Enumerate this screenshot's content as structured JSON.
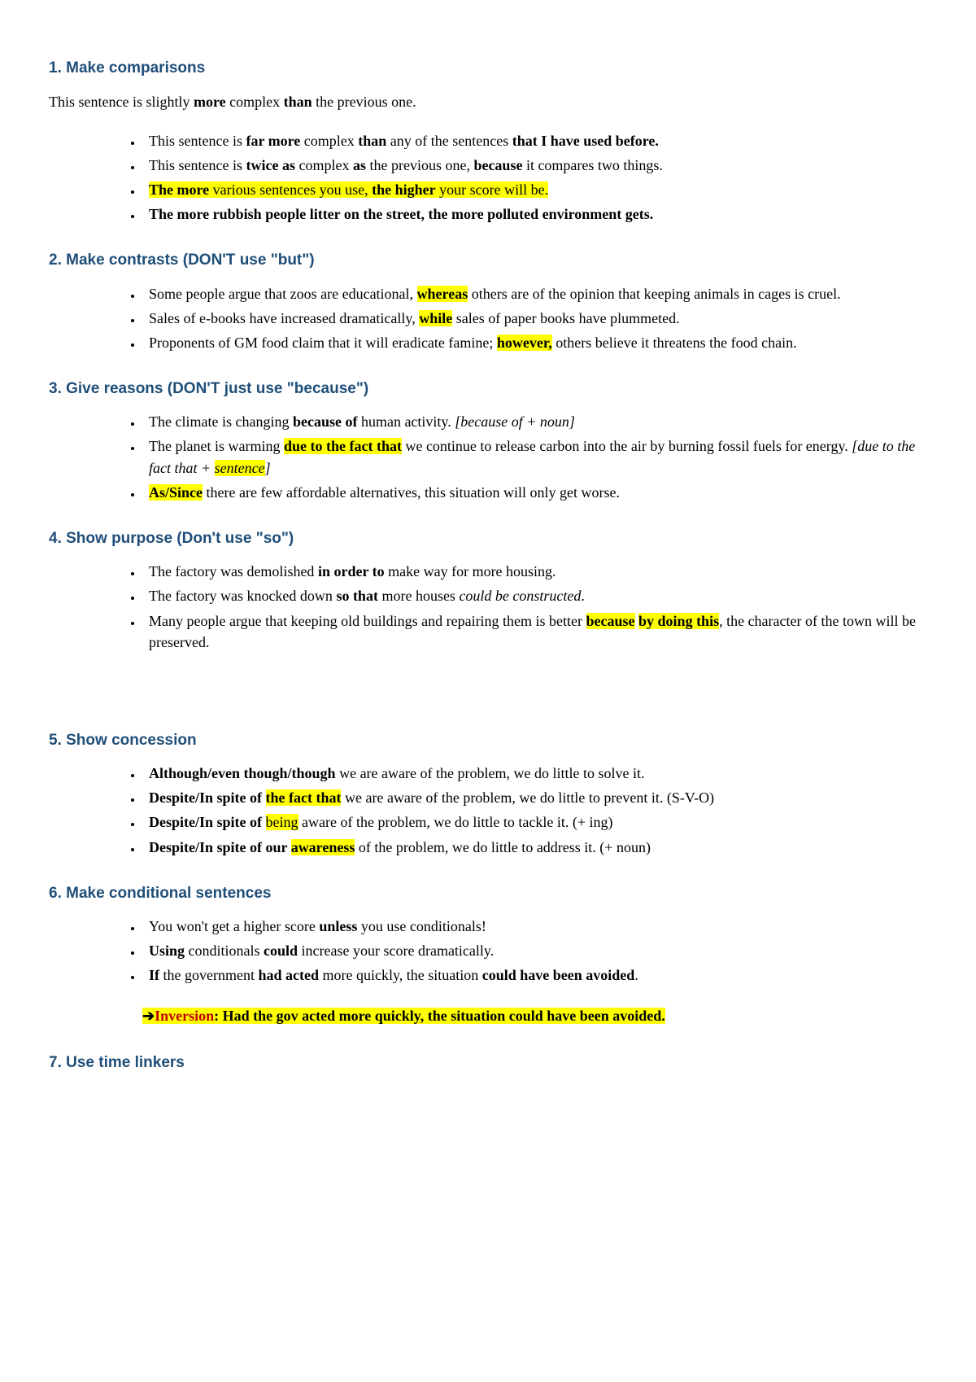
{
  "s1": {
    "title": "1. Make comparisons",
    "lead_a": "This sentence is slightly ",
    "lead_b": "more",
    "lead_c": " complex ",
    "lead_d": "than",
    "lead_e": " the previous one.",
    "i1a": "This sentence is ",
    "i1b": "far more",
    "i1c": " complex ",
    "i1d": "than",
    "i1e": " any of the sentences ",
    "i1f": "that I have used before.",
    "i2a": "This sentence is ",
    "i2b": "twice as",
    "i2c": " complex ",
    "i2d": "as",
    "i2e": " the previous one, ",
    "i2f": "because",
    "i2g": " it compares two things.",
    "i3a": "The more",
    "i3b": " various sentences you use, ",
    "i3c": "the higher",
    "i3d": " your score will be.",
    "i4": "The more rubbish people litter on the street, the more polluted environment gets."
  },
  "s2": {
    "title": "2. Make contrasts (DON'T use \"but\")",
    "i1a": "Some people argue that zoos are educational, ",
    "i1b": "whereas",
    "i1c": " others are of the opinion that keeping animals in cages is cruel.",
    "i2a": "Sales of e-books have increased dramatically, ",
    "i2b": "while",
    "i2c": " sales of paper books have plummeted.",
    "i3a": "Proponents of GM food claim that it will eradicate famine; ",
    "i3b": "however,",
    "i3c": " others believe it threatens the food chain."
  },
  "s3": {
    "title": "3. Give reasons (DON'T just use \"because\")",
    "i1a": "The climate is changing ",
    "i1b": "because of",
    "i1c": " human activity. ",
    "i1d": "[because of + noun]",
    "i2a": "The planet is warming ",
    "i2b": "due to the fact that",
    "i2c": " we continue to release carbon into the air by burning fossil fuels for energy. ",
    "i2d": "[due to the fact that + ",
    "i2e": "sentence",
    "i2f": "]",
    "i3a": "As/Since",
    "i3b": " there are few affordable alternatives, this situation will only get worse."
  },
  "s4": {
    "title": "4. Show purpose (Don't use \"so\")",
    "i1a": "The factory was demolished ",
    "i1b": "in order to",
    "i1c": " make way for more housing.",
    "i2a": "The factory was knocked down ",
    "i2b": "so that",
    "i2c": " more houses ",
    "i2d": "could be constructed",
    "i2e": ".",
    "i3a": "Many people argue that keeping old buildings and repairing them is better ",
    "i3b": "because",
    "i3c": " ",
    "i3d": "by doing this",
    "i3e": ", the character of the town will be preserved."
  },
  "s5": {
    "title": "5. Show concession",
    "i1a": "Although/even though/though",
    "i1b": " we are aware of the problem, we do little to solve it.",
    "i2a": "Despite/In spite of ",
    "i2b": "the fact that",
    "i2c": " we are aware of the problem, we do little to prevent it. (S-V-O)",
    "i3a": "Despite/In spite of ",
    "i3b": "being",
    "i3c": " aware of the problem, we do little to tackle it. (+ ing)",
    "i4a": "Despite/In spite of our ",
    "i4b": "awareness",
    "i4c": " of the problem, we do little to address it. (+ noun)"
  },
  "s6": {
    "title": "6. Make conditional sentences",
    "i1a": "You won't get a higher score ",
    "i1b": "unless",
    "i1c": " you use conditionals!",
    "i2a": "Using",
    "i2b": " conditionals ",
    "i2c": "could",
    "i2d": " increase your score dramatically.",
    "i3a": "If",
    "i3b": " the government ",
    "i3c": "had acted",
    "i3d": " more quickly, the situation ",
    "i3e": "could have been avoided",
    "i3f": ".",
    "note_arrow": "➔",
    "note_label": "Inversion",
    "note_colon": ": ",
    "note_text": "Had the gov acted more quickly, the situation could have been avoided."
  },
  "s7": {
    "title": "7. Use time linkers"
  }
}
